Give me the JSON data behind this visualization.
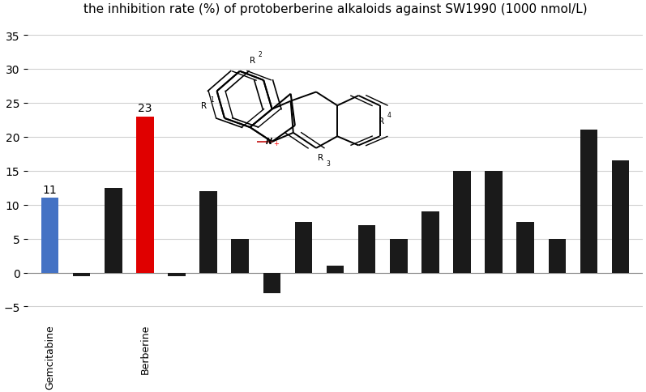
{
  "title": "the inhibition rate (%) of protoberberine alkaloids against SW1990 (1000 nmol/L)",
  "values": [
    11,
    -0.5,
    12.5,
    23,
    -0.5,
    12,
    5,
    -3,
    7.5,
    1,
    7,
    5,
    9,
    15,
    15,
    7.5,
    5,
    21,
    16.5
  ],
  "colors": [
    "#4472c4",
    "#1a1a1a",
    "#1a1a1a",
    "#e00000",
    "#1a1a1a",
    "#1a1a1a",
    "#1a1a1a",
    "#1a1a1a",
    "#1a1a1a",
    "#1a1a1a",
    "#1a1a1a",
    "#1a1a1a",
    "#1a1a1a",
    "#1a1a1a",
    "#1a1a1a",
    "#1a1a1a",
    "#1a1a1a",
    "#1a1a1a",
    "#1a1a1a"
  ],
  "xlabels": [
    "Gemcitabine",
    "",
    "",
    "Berberine",
    "",
    "",
    "",
    "",
    "",
    "",
    "",
    "",
    "",
    "",
    "",
    "",
    "",
    "",
    ""
  ],
  "ylim": [
    -7,
    37
  ],
  "yticks": [
    -5,
    0,
    5,
    10,
    15,
    20,
    25,
    30,
    35
  ],
  "background_color": "#ffffff",
  "title_fontsize": 11,
  "bar_width": 0.55
}
